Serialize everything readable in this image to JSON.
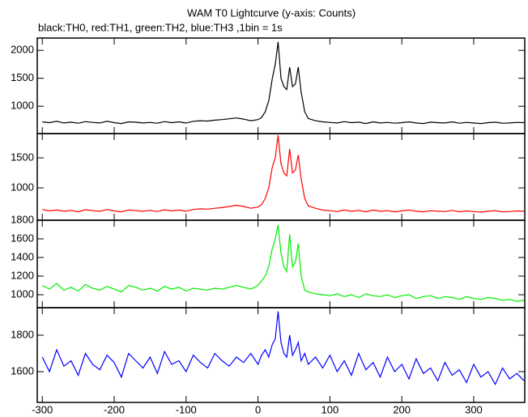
{
  "chart_data": {
    "type": "line",
    "title": "WAM T0 Lightcurve (y-axis: Counts)",
    "subtitle": "black:TH0, red:TH1, green:TH2, blue:TH3 ,1bin = 1s",
    "x": [
      -300,
      -290,
      -280,
      -270,
      -260,
      -250,
      -240,
      -230,
      -220,
      -210,
      -200,
      -190,
      -180,
      -170,
      -160,
      -150,
      -140,
      -130,
      -120,
      -110,
      -100,
      -90,
      -80,
      -70,
      -60,
      -50,
      -40,
      -30,
      -20,
      -10,
      0,
      5,
      10,
      15,
      20,
      24,
      28,
      32,
      36,
      40,
      44,
      48,
      52,
      56,
      60,
      65,
      70,
      80,
      90,
      100,
      110,
      120,
      130,
      140,
      150,
      160,
      170,
      180,
      190,
      200,
      210,
      220,
      230,
      240,
      250,
      260,
      270,
      280,
      290,
      300,
      310,
      320,
      330,
      340,
      350,
      360,
      370
    ],
    "xlim": [
      -307,
      371
    ],
    "xticks": [
      -300,
      -200,
      -100,
      0,
      100,
      200,
      300
    ],
    "panels": [
      {
        "color": "#000000",
        "ylim": [
          510,
          2220
        ],
        "yticks": [
          1000,
          1500,
          2000
        ],
        "values": [
          720,
          705,
          730,
          700,
          715,
          695,
          725,
          710,
          700,
          730,
          705,
          690,
          720,
          715,
          700,
          710,
          695,
          725,
          705,
          720,
          700,
          730,
          740,
          735,
          750,
          760,
          775,
          790,
          770,
          740,
          760,
          800,
          900,
          1100,
          1500,
          1750,
          2150,
          1500,
          1350,
          1300,
          1700,
          1350,
          1400,
          1700,
          1250,
          900,
          780,
          740,
          720,
          710,
          700,
          725,
          705,
          715,
          690,
          720,
          700,
          710,
          695,
          705,
          720,
          700,
          690,
          715,
          705,
          700,
          720,
          695,
          710,
          700,
          690,
          705,
          715,
          695,
          700,
          710,
          705
        ]
      },
      {
        "color": "#ff0000",
        "ylim": [
          460,
          1905
        ],
        "yticks": [
          1000,
          1500
        ],
        "values": [
          640,
          615,
          630,
          610,
          625,
          600,
          635,
          620,
          610,
          640,
          615,
          600,
          630,
          620,
          610,
          625,
          605,
          635,
          615,
          630,
          610,
          640,
          650,
          645,
          660,
          670,
          690,
          710,
          690,
          660,
          680,
          720,
          820,
          1000,
          1350,
          1500,
          1880,
          1400,
          1250,
          1200,
          1650,
          1250,
          1300,
          1550,
          1150,
          820,
          700,
          660,
          630,
          620,
          605,
          630,
          610,
          625,
          600,
          630,
          610,
          620,
          600,
          615,
          630,
          610,
          600,
          620,
          610,
          605,
          625,
          600,
          615,
          605,
          595,
          610,
          620,
          600,
          605,
          615,
          610
        ]
      },
      {
        "color": "#00ee00",
        "ylim": [
          861,
          1800
        ],
        "yticks": [
          1000,
          1200,
          1400,
          1600,
          1800
        ],
        "values": [
          1100,
          1060,
          1120,
          1050,
          1080,
          1040,
          1110,
          1070,
          1050,
          1090,
          1060,
          1030,
          1100,
          1080,
          1050,
          1070,
          1040,
          1090,
          1060,
          1080,
          1040,
          1070,
          1060,
          1050,
          1070,
          1060,
          1080,
          1100,
          1080,
          1060,
          1100,
          1150,
          1200,
          1300,
          1500,
          1600,
          1750,
          1450,
          1300,
          1250,
          1650,
          1300,
          1350,
          1550,
          1200,
          1050,
          1030,
          1010,
          1000,
          990,
          1010,
          980,
          1000,
          970,
          1010,
          990,
          980,
          1000,
          970,
          990,
          1000,
          960,
          980,
          990,
          960,
          980,
          970,
          950,
          980,
          960,
          950,
          970,
          960,
          940,
          950,
          930,
          940
        ]
      },
      {
        "color": "#0000ff",
        "ylim": [
          1431,
          1951
        ],
        "yticks": [
          1600,
          1800
        ],
        "values": [
          1680,
          1600,
          1720,
          1630,
          1660,
          1580,
          1700,
          1640,
          1610,
          1690,
          1650,
          1570,
          1700,
          1660,
          1620,
          1680,
          1590,
          1710,
          1640,
          1660,
          1600,
          1690,
          1650,
          1620,
          1700,
          1660,
          1630,
          1680,
          1650,
          1700,
          1640,
          1690,
          1720,
          1680,
          1750,
          1780,
          1930,
          1760,
          1700,
          1680,
          1800,
          1690,
          1720,
          1760,
          1660,
          1700,
          1640,
          1680,
          1620,
          1690,
          1600,
          1660,
          1580,
          1700,
          1610,
          1650,
          1570,
          1680,
          1600,
          1640,
          1560,
          1670,
          1590,
          1620,
          1550,
          1650,
          1580,
          1610,
          1540,
          1640,
          1570,
          1600,
          1530,
          1620,
          1560,
          1590,
          1550
        ]
      }
    ]
  }
}
